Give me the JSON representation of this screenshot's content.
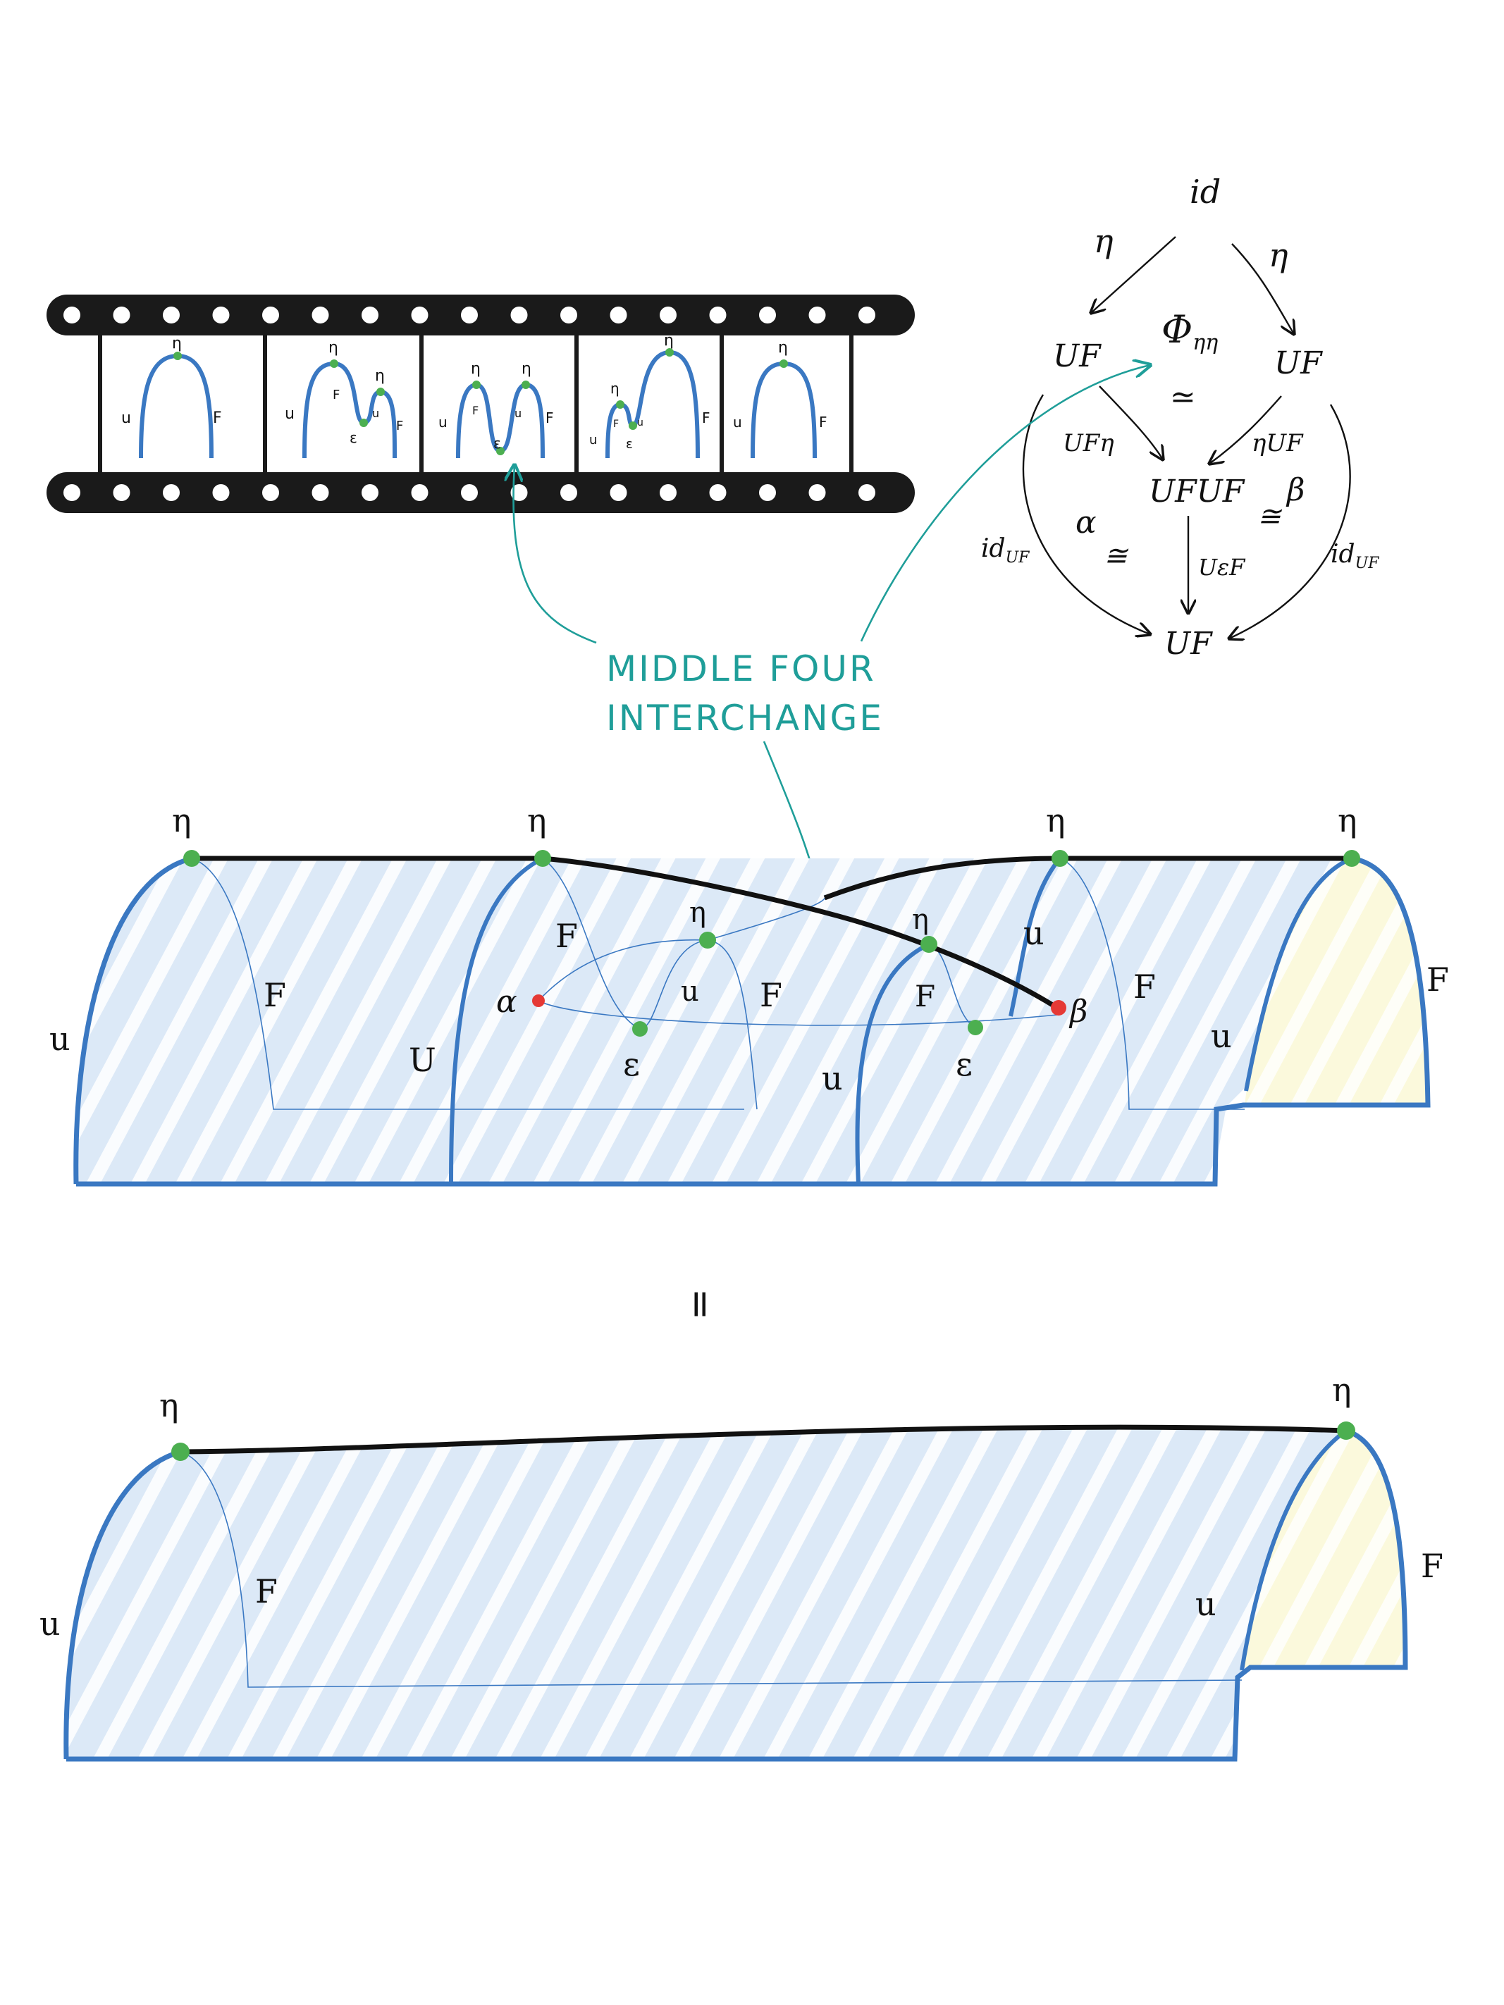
{
  "colors": {
    "ink": "#111111",
    "blue_line": "#3a78c2",
    "surface_fill": "#dce9f7",
    "stripe": "#ffffff",
    "yellow_fill": "#fbf9dc",
    "green_dot": "#4caf50",
    "red_dot": "#e53935",
    "teal": "#1f9e99",
    "film": "#1a1a1a"
  },
  "film_strip": {
    "frames": [
      {
        "labels": {
          "eta": "η",
          "u": "u",
          "f": "F"
        }
      },
      {
        "labels": {
          "eta1": "η",
          "eta2": "η",
          "u": "u",
          "f1": "F",
          "f2": "F",
          "u2": "u",
          "eps": "ε"
        }
      },
      {
        "labels": {
          "eta1": "η",
          "eta2": "η",
          "u": "u",
          "f1": "F",
          "u2": "u",
          "f2": "F",
          "eps": "ε"
        }
      },
      {
        "labels": {
          "eta1": "η",
          "eta2": "η",
          "u": "u",
          "f1": "F",
          "u2": "u",
          "f2": "F",
          "eps": "ε"
        }
      },
      {
        "labels": {
          "eta": "η",
          "u": "u",
          "f": "F"
        }
      }
    ]
  },
  "commutative_diagram": {
    "top": "id",
    "left": "UF",
    "right": "UF",
    "center": "UFUF",
    "bottom": "UF",
    "arrow_eta_left": "η",
    "arrow_eta_right": "η",
    "arrow_ufeta": "UFη",
    "arrow_etauf": "ηUF",
    "arrow_uepsf": "UεF",
    "arrow_id_left": "id",
    "arrow_id_left_sub": "UF",
    "arrow_id_right": "id",
    "arrow_id_right_sub": "UF",
    "phi": "Φ",
    "phi_sub": "ηη",
    "iso_phi": "≃",
    "alpha": "α",
    "iso_alpha": "≅",
    "beta": "β",
    "iso_beta": "≅"
  },
  "annotation": {
    "line1": "MIDDLE FOUR",
    "line2": "INTERCHANGE"
  },
  "top_surface": {
    "eta_labels": [
      "η",
      "η",
      "η",
      "η",
      "η",
      "η"
    ],
    "u_labels": [
      "u",
      "U",
      "u",
      "u",
      "u",
      "u"
    ],
    "f_labels": [
      "F",
      "F",
      "F",
      "F",
      "F",
      "F"
    ],
    "eps_labels": [
      "ε",
      "ε"
    ],
    "alpha": "α",
    "beta": "β"
  },
  "equals_sign": "=",
  "bottom_surface": {
    "eta_left": "η",
    "eta_right": "η",
    "u_left": "u",
    "u_right": "u",
    "f_left": "F",
    "f_right": "F"
  }
}
